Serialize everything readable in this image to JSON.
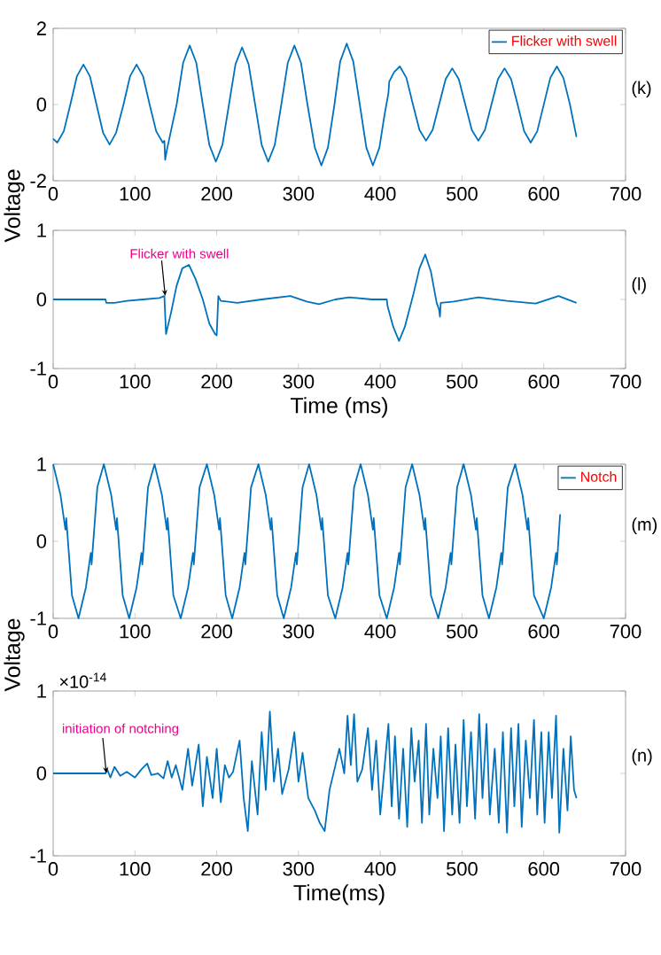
{
  "chart_data": [
    {
      "type": "line",
      "ylabel": "Voltage",
      "legend": "top right",
      "xlim": [
        0,
        700
      ],
      "xticks": [
        0,
        100,
        200,
        300,
        400,
        500,
        600,
        700
      ],
      "ylim": [
        -2,
        2
      ],
      "yticks": [
        -2,
        0,
        2
      ],
      "annotations": [
        "(k)"
      ],
      "x": [
        0,
        5,
        13,
        21,
        29,
        37,
        45,
        53,
        61,
        69,
        77,
        86,
        94,
        102,
        110,
        118,
        126,
        134,
        136,
        137,
        139,
        144,
        151,
        159,
        167,
        175,
        183,
        191,
        199,
        207,
        215,
        223,
        231,
        239,
        247,
        255,
        263,
        271,
        279,
        287,
        295,
        303,
        311,
        320,
        328,
        336,
        344,
        351,
        359,
        367,
        375,
        383,
        391,
        399,
        405,
        410,
        411,
        417,
        424,
        432,
        440,
        448,
        456,
        464,
        472,
        480,
        488,
        496,
        504,
        512,
        520,
        528,
        536,
        544,
        552,
        560,
        568,
        576,
        584,
        592,
        600,
        608,
        616,
        624,
        632,
        640
      ],
      "series": [
        {
          "name": "Flicker with swell",
          "color": "#0072bd",
          "values": [
            -0.9,
            -1.0,
            -0.7,
            0,
            0.74,
            1.05,
            0.74,
            0,
            -0.74,
            -1.05,
            -0.74,
            0,
            0.74,
            1.05,
            0.74,
            0,
            -0.7,
            -1.0,
            -0.95,
            -1.45,
            -1.2,
            -0.7,
            0,
            1.1,
            1.55,
            1.1,
            0,
            -1.06,
            -1.5,
            -1.06,
            0,
            1.06,
            1.5,
            1.06,
            0,
            -1.06,
            -1.5,
            -1.06,
            0,
            1.1,
            1.55,
            1.1,
            0,
            -1.13,
            -1.6,
            -1.13,
            0,
            1.13,
            1.6,
            1.13,
            0,
            -1.13,
            -1.6,
            -1.13,
            -0.3,
            0.3,
            0.6,
            0.85,
            1.0,
            0.7,
            0,
            -0.67,
            -0.95,
            -0.67,
            0,
            0.67,
            0.95,
            0.67,
            0,
            -0.67,
            -0.95,
            -0.67,
            0,
            0.67,
            0.95,
            0.67,
            0,
            -0.7,
            -1.0,
            -0.7,
            0,
            0.7,
            1.0,
            0.7,
            0,
            -0.85
          ]
        }
      ]
    },
    {
      "type": "line",
      "xlabel": "Time (ms)",
      "xlim": [
        0,
        700
      ],
      "xticks": [
        0,
        100,
        200,
        300,
        400,
        500,
        600,
        700
      ],
      "ylim": [
        -1,
        1
      ],
      "yticks": [
        -1,
        0,
        1
      ],
      "annotations": [
        {
          "text": "Flicker with swell",
          "x": 137,
          "y": 0.05
        },
        "(l)"
      ],
      "x": [
        0,
        64,
        65,
        75,
        90,
        110,
        130,
        136,
        138,
        144,
        151,
        158,
        166,
        174,
        183,
        191,
        198,
        200,
        202,
        205,
        225,
        255,
        290,
        310,
        325,
        345,
        362,
        390,
        408,
        409,
        416,
        423,
        430,
        440,
        448,
        455,
        462,
        469,
        472,
        473,
        474,
        490,
        520,
        555,
        590,
        618,
        640
      ],
      "series": [
        {
          "color": "#0072bd",
          "values": [
            0,
            0,
            -0.05,
            -0.05,
            -0.02,
            0,
            0.02,
            0.05,
            -0.5,
            -0.2,
            0.2,
            0.45,
            0.5,
            0.3,
            0,
            -0.35,
            -0.5,
            -0.52,
            0.05,
            -0.02,
            -0.05,
            0,
            0.05,
            -0.03,
            -0.07,
            0,
            0.03,
            0,
            0,
            -0.1,
            -0.4,
            -0.6,
            -0.4,
            0.05,
            0.45,
            0.65,
            0.4,
            -0.05,
            -0.15,
            -0.25,
            -0.05,
            -0.03,
            0.03,
            -0.02,
            -0.06,
            0.05,
            -0.05
          ]
        }
      ]
    },
    {
      "type": "line",
      "legend": "top right",
      "xlim": [
        0,
        700
      ],
      "xticks": [
        0,
        100,
        200,
        300,
        400,
        500,
        600,
        700
      ],
      "ylim": [
        -1,
        1
      ],
      "yticks": [
        -1,
        0,
        1
      ],
      "ylabel": "Voltage",
      "annotations": [
        "(m)"
      ],
      "x": [
        0,
        9,
        15,
        16,
        23,
        31,
        40,
        46,
        47,
        54,
        62,
        71,
        77,
        78,
        85,
        93,
        102,
        108,
        109,
        116,
        124,
        133,
        139,
        140,
        147,
        156,
        165,
        171,
        172,
        179,
        188,
        197,
        203,
        204,
        211,
        219,
        228,
        234,
        235,
        242,
        251,
        260,
        266,
        267,
        274,
        282,
        291,
        297,
        298,
        305,
        313,
        322,
        328,
        329,
        336,
        345,
        354,
        360,
        361,
        368,
        376,
        385,
        391,
        392,
        399,
        408,
        417,
        423,
        424,
        431,
        439,
        448,
        454,
        455,
        462,
        471,
        480,
        486,
        487,
        494,
        502,
        511,
        517,
        518,
        525,
        533,
        542,
        548,
        549,
        556,
        565,
        574,
        580,
        581,
        588,
        600,
        609,
        615,
        616,
        620
      ],
      "series": [
        {
          "name": "Notch",
          "color": "#0072bd",
          "values": [
            1,
            0.6,
            0.15,
            0.3,
            -0.7,
            -1,
            -0.6,
            -0.15,
            -0.3,
            0.7,
            1,
            0.6,
            0.15,
            0.3,
            -0.7,
            -1,
            -0.6,
            -0.15,
            -0.3,
            0.7,
            1,
            0.6,
            0.15,
            0.3,
            -0.7,
            -1,
            -0.6,
            -0.15,
            -0.3,
            0.7,
            1,
            0.6,
            0.15,
            0.3,
            -0.7,
            -1,
            -0.6,
            -0.15,
            -0.3,
            0.7,
            1,
            0.6,
            0.15,
            0.3,
            -0.7,
            -1,
            -0.6,
            -0.15,
            -0.3,
            0.7,
            1,
            0.6,
            0.15,
            0.3,
            -0.7,
            -1,
            -0.6,
            -0.15,
            -0.3,
            0.7,
            1,
            0.6,
            0.15,
            0.3,
            -0.7,
            -1,
            -0.6,
            -0.15,
            -0.3,
            0.7,
            1,
            0.6,
            0.15,
            0.3,
            -0.7,
            -1,
            -0.6,
            -0.15,
            -0.3,
            0.7,
            1,
            0.6,
            0.15,
            0.3,
            -0.7,
            -1,
            -0.6,
            -0.15,
            -0.3,
            0.7,
            1,
            0.6,
            0.15,
            0.3,
            -0.7,
            -1,
            -0.6,
            -0.15,
            -0.3,
            0.35
          ]
        }
      ]
    },
    {
      "type": "line",
      "xlabel": "Time(ms)",
      "xlim": [
        0,
        700
      ],
      "xticks": [
        0,
        100,
        200,
        300,
        400,
        500,
        600,
        700
      ],
      "ylim": [
        -1,
        1
      ],
      "yticks": [
        -1,
        0,
        1
      ],
      "annotations": [
        {
          "text": "initiation of notching",
          "x": 65,
          "y": 0
        },
        "(n)",
        "×10$^{-14}$"
      ],
      "x": [
        0,
        64,
        66,
        70,
        75,
        82,
        90,
        100,
        108,
        115,
        120,
        128,
        135,
        140,
        145,
        150,
        158,
        165,
        170,
        178,
        183,
        188,
        195,
        200,
        205,
        210,
        215,
        220,
        228,
        233,
        238,
        243,
        250,
        255,
        260,
        265,
        270,
        275,
        280,
        288,
        295,
        300,
        305,
        312,
        320,
        326,
        332,
        338,
        344,
        350,
        356,
        360,
        364,
        368,
        372,
        378,
        385,
        390,
        395,
        400,
        405,
        410,
        414,
        418,
        423,
        428,
        433,
        438,
        442,
        447,
        451,
        456,
        460,
        465,
        470,
        474,
        478,
        483,
        488,
        492,
        497,
        502,
        506,
        511,
        516,
        521,
        525,
        530,
        534,
        540,
        545,
        550,
        555,
        560,
        564,
        569,
        573,
        578,
        583,
        588,
        592,
        597,
        601,
        606,
        610,
        615,
        619,
        624,
        629,
        633,
        637,
        640
      ],
      "series": [
        {
          "color": "#0072bd",
          "values": [
            0,
            0,
            0.05,
            -0.05,
            0.08,
            -0.03,
            0.02,
            -0.05,
            0.05,
            0.12,
            -0.02,
            0,
            -0.06,
            0.15,
            -0.05,
            0.1,
            -0.2,
            0.3,
            -0.15,
            0.35,
            -0.4,
            0.2,
            -0.3,
            0.3,
            -0.35,
            0.1,
            -0.05,
            0.02,
            0.4,
            -0.3,
            -0.7,
            0.15,
            -0.5,
            0.5,
            -0.2,
            0.75,
            -0.1,
            0.3,
            -0.25,
            0.05,
            0.5,
            -0.1,
            0.25,
            -0.3,
            -0.45,
            -0.6,
            -0.7,
            -0.2,
            0.05,
            0.3,
            0,
            0.7,
            0.1,
            0.72,
            -0.1,
            0.05,
            0.55,
            -0.2,
            0.4,
            -0.5,
            0.05,
            0.6,
            -0.4,
            0.45,
            -0.55,
            0.3,
            -0.65,
            0.55,
            -0.1,
            0.4,
            -0.6,
            0.6,
            -0.5,
            0.3,
            -0.3,
            0.45,
            -0.7,
            0.55,
            -0.5,
            0.35,
            -0.6,
            0.65,
            -0.4,
            0.5,
            -0.55,
            0.72,
            -0.3,
            0.6,
            -0.5,
            0.3,
            -0.6,
            0.5,
            -0.72,
            0.55,
            -0.4,
            0.6,
            -0.65,
            0.4,
            -0.3,
            0.65,
            -0.5,
            0.5,
            -0.6,
            0.5,
            -0.3,
            0.7,
            -0.72,
            0.3,
            -0.45,
            0.45,
            -0.2,
            -0.3
          ]
        }
      ]
    }
  ]
}
